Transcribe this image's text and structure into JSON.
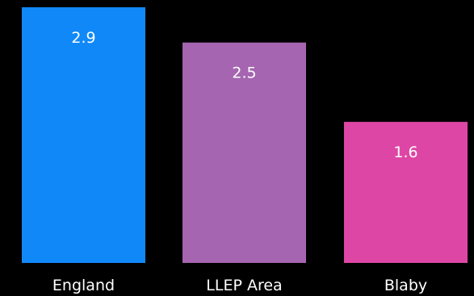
{
  "chart_data": {
    "type": "bar",
    "categories": [
      "England",
      "LLEP Area",
      "Blaby"
    ],
    "values": [
      2.9,
      2.5,
      1.6
    ],
    "value_labels": [
      "2.9",
      "2.5",
      "1.6"
    ],
    "colors": [
      "#1088f8",
      "#a565b0",
      "#de46a5"
    ],
    "ylim": [
      0,
      2.9
    ],
    "grid": false,
    "legend": "none",
    "background": "#000000"
  }
}
